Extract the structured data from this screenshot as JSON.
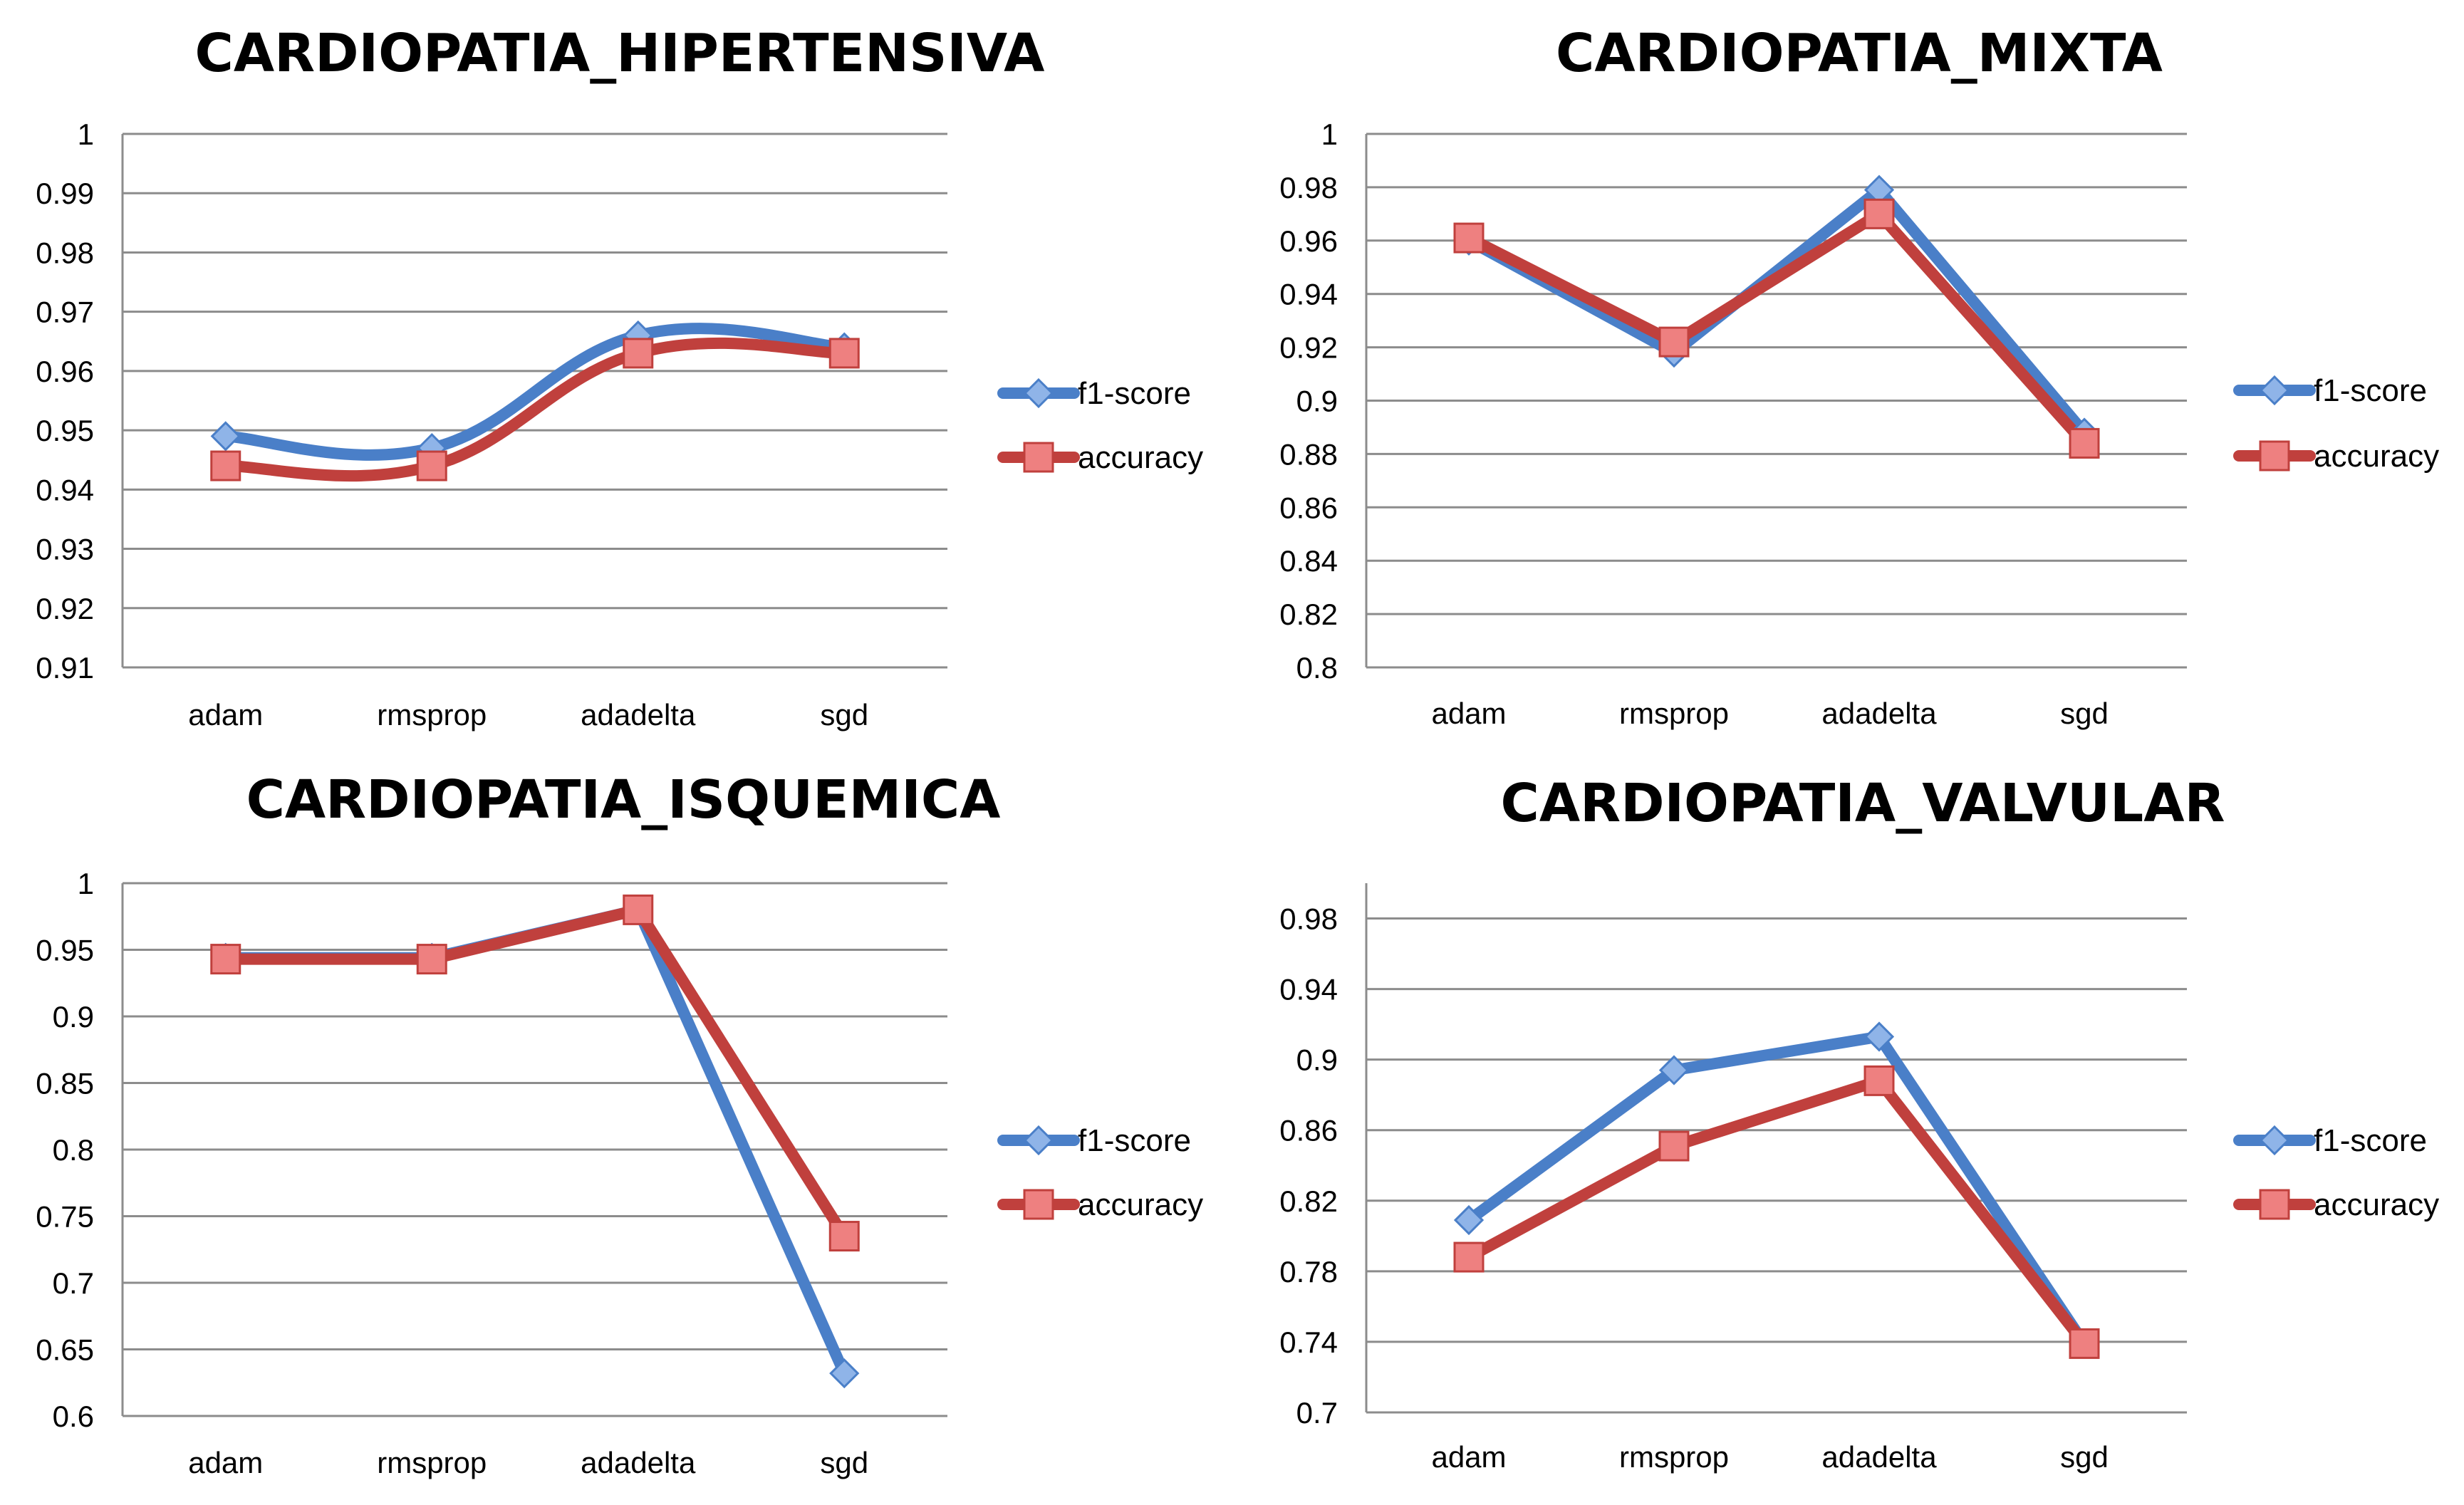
{
  "colors": {
    "f1_score": "#4a7fc8",
    "f1_score_marker": "#8fb4e8",
    "f1_score_marker_stroke": "#4a7fc8",
    "accuracy": "#c0403d",
    "accuracy_marker": "#ee8080",
    "accuracy_marker_stroke": "#c0403d",
    "grid": "#8c8c8c",
    "axis": "#8c8c8c"
  },
  "chart_data": [
    {
      "type": "line",
      "title": "CARDIOPATIA_HIPERTENSIVA",
      "smooth": true,
      "categories": [
        "adam",
        "rmsprop",
        "adadelta",
        "sgd"
      ],
      "ylim": [
        0.91,
        1
      ],
      "yticks": [
        0.91,
        0.92,
        0.93,
        0.94,
        0.95,
        0.96,
        0.97,
        0.98,
        0.99,
        1
      ],
      "ytick_labels": [
        "0.91",
        "0.92",
        "0.93",
        "0.94",
        "0.95",
        "0.96",
        "0.97",
        "0.98",
        "0.99",
        "1"
      ],
      "grid": true,
      "legend": "right",
      "series": [
        {
          "name": "f1-score",
          "marker": "diamond",
          "values": [
            0.949,
            0.947,
            0.966,
            0.964
          ]
        },
        {
          "name": "accuracy",
          "marker": "square",
          "values": [
            0.944,
            0.944,
            0.963,
            0.963
          ]
        }
      ]
    },
    {
      "type": "line",
      "title": "CARDIOPATIA_MIXTA",
      "smooth": false,
      "categories": [
        "adam",
        "rmsprop",
        "adadelta",
        "sgd"
      ],
      "ylim": [
        0.8,
        1
      ],
      "yticks": [
        0.8,
        0.82,
        0.84,
        0.86,
        0.88,
        0.9,
        0.92,
        0.94,
        0.96,
        0.98,
        1
      ],
      "ytick_labels": [
        "0.8",
        "0.82",
        "0.84",
        "0.86",
        "0.88",
        "0.9",
        "0.92",
        "0.94",
        "0.96",
        "0.98",
        "1"
      ],
      "grid": true,
      "legend": "right",
      "series": [
        {
          "name": "f1-score",
          "marker": "diamond",
          "values": [
            0.96,
            0.918,
            0.979,
            0.888
          ]
        },
        {
          "name": "accuracy",
          "marker": "square",
          "values": [
            0.961,
            0.922,
            0.97,
            0.884
          ]
        }
      ]
    },
    {
      "type": "line",
      "title": "CARDIOPATIA_ISQUEMICA",
      "smooth": false,
      "categories": [
        "adam",
        "rmsprop",
        "adadelta",
        "sgd"
      ],
      "ylim": [
        0.6,
        1
      ],
      "yticks": [
        0.6,
        0.65,
        0.7,
        0.75,
        0.8,
        0.85,
        0.9,
        0.95,
        1
      ],
      "ytick_labels": [
        "0.6",
        "0.65",
        "0.7",
        "0.75",
        "0.8",
        "0.85",
        "0.9",
        "0.95",
        "1"
      ],
      "grid": true,
      "legend": "right",
      "series": [
        {
          "name": "f1-score",
          "marker": "diamond",
          "values": [
            0.944,
            0.944,
            0.98,
            0.632
          ]
        },
        {
          "name": "accuracy",
          "marker": "square",
          "values": [
            0.943,
            0.943,
            0.98,
            0.735
          ]
        }
      ]
    },
    {
      "type": "line",
      "title": "CARDIOPATIA_VALVULAR",
      "smooth": false,
      "categories": [
        "adam",
        "rmsprop",
        "adadelta",
        "sgd"
      ],
      "ylim": [
        0.7,
        1
      ],
      "yticks": [
        0.7,
        0.74,
        0.78,
        0.82,
        0.86,
        0.9,
        0.94,
        0.98
      ],
      "ytick_labels": [
        "0.7",
        "0.74",
        "0.78",
        "0.82",
        "0.86",
        "0.9",
        "0.94",
        "0.98"
      ],
      "grid": true,
      "legend": "right",
      "series": [
        {
          "name": "f1-score",
          "marker": "diamond",
          "values": [
            0.809,
            0.894,
            0.913,
            0.739
          ]
        },
        {
          "name": "accuracy",
          "marker": "square",
          "values": [
            0.788,
            0.851,
            0.888,
            0.739
          ]
        }
      ]
    }
  ]
}
